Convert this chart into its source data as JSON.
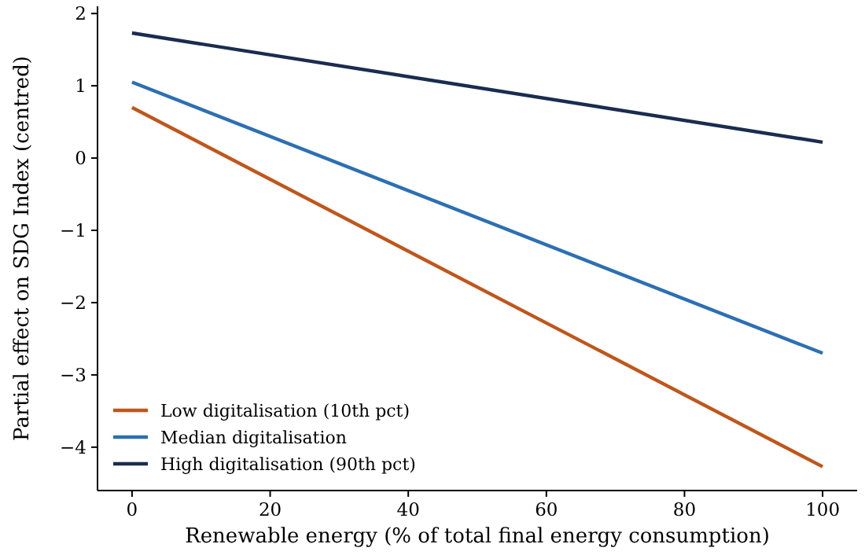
{
  "chart_data": {
    "type": "line",
    "xlabel": "Renewable energy (% of total final energy consumption)",
    "ylabel": "Partial effect on SDG Index (centred)",
    "x": [
      0,
      100
    ],
    "xlim": [
      -5,
      105
    ],
    "xticks": [
      0,
      20,
      40,
      60,
      80,
      100
    ],
    "ylim": [
      -4.6,
      2.1
    ],
    "yticks": [
      {
        "value": -4,
        "label": "−4"
      },
      {
        "value": -3,
        "label": "−3"
      },
      {
        "value": -2,
        "label": "−2"
      },
      {
        "value": -1,
        "label": "−1"
      },
      0,
      1,
      2
    ],
    "grid": false,
    "legend": "bottom left",
    "marker": "none",
    "line_style": "solid",
    "series": [
      {
        "name": "Low digitalisation (10th pct)",
        "color": "#c0561b",
        "values": [
          0.7,
          -4.27
        ]
      },
      {
        "name": "Median digitalisation",
        "color": "#2c6fb4",
        "values": [
          1.05,
          -2.7
        ]
      },
      {
        "name": "High digitalisation (90th pct)",
        "color": "#1a2c50",
        "values": [
          1.73,
          0.22
        ]
      }
    ]
  }
}
